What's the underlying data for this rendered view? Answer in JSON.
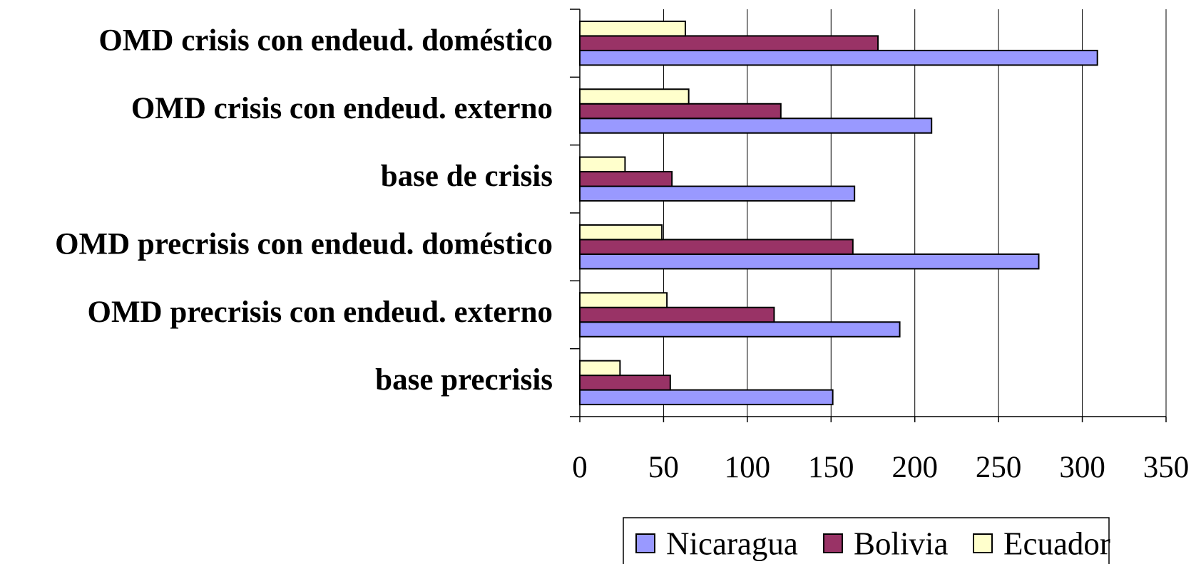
{
  "chart_data": {
    "type": "bar",
    "orientation": "horizontal",
    "categories": [
      "base precrisis",
      "OMD precrisis con endeud. externo",
      "OMD precrisis con endeud. doméstico",
      "base de crisis",
      "OMD crisis con endeud. externo",
      "OMD crisis con endeud. doméstico"
    ],
    "series": [
      {
        "name": "Nicaragua",
        "color": "#9999ff",
        "values": [
          151,
          191,
          274,
          164,
          210,
          309
        ]
      },
      {
        "name": "Bolivia",
        "color": "#993366",
        "values": [
          54,
          116,
          163,
          55,
          120,
          178
        ]
      },
      {
        "name": "Ecuador",
        "color": "#ffffcc",
        "values": [
          24,
          52,
          49,
          27,
          65,
          63
        ]
      }
    ],
    "xlim": [
      0,
      350
    ],
    "xticks": [
      0,
      50,
      100,
      150,
      200,
      250,
      300,
      350
    ],
    "grid": true,
    "legend": "bottom"
  }
}
